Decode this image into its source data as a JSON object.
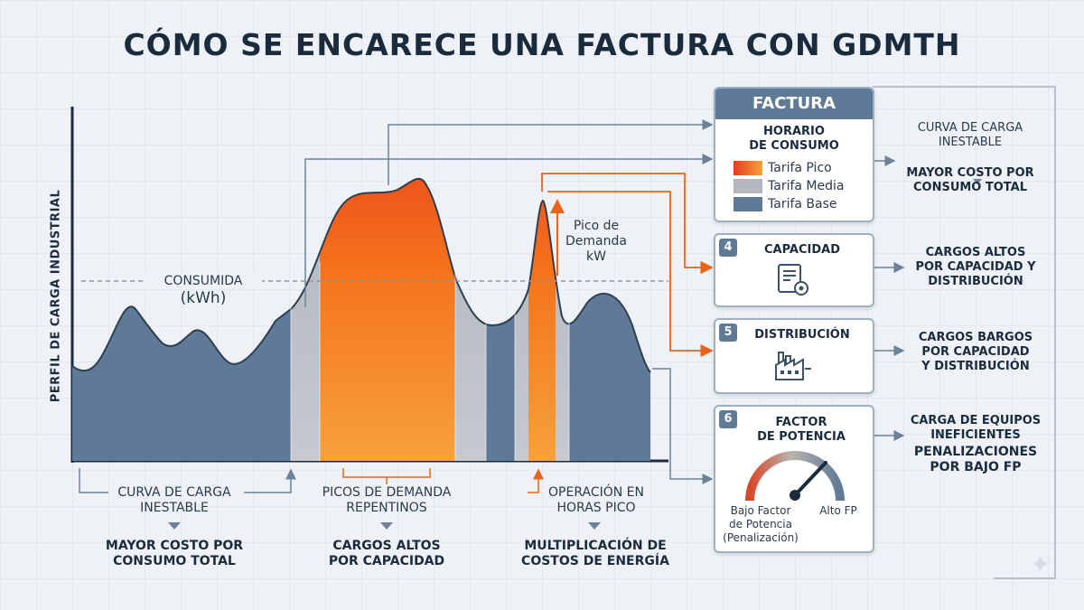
{
  "title": "CÓMO SE ENCARECE UNA FACTURA CON GDMTH",
  "y_axis_label": "PERFIL DE CARGA INDUSTRIAL",
  "chart": {
    "consumed_label_1": "CONSUMIDA",
    "consumed_label_2": "(kWh)",
    "peak_label": [
      "Pico de",
      "Demanda",
      "kW"
    ]
  },
  "bottom": [
    {
      "cause": [
        "CURVA DE CARGA",
        "INESTABLE"
      ],
      "effect": [
        "MAYOR COSTO POR",
        "CONSUMO TOTAL"
      ]
    },
    {
      "cause": [
        "PICOS DE DEMANDA",
        "REPENTINOS"
      ],
      "effect": [
        "CARGOS ALTOS",
        "POR CAPACIDAD"
      ]
    },
    {
      "cause": [
        "OPERACIÓN EN",
        "HORAS PICO"
      ],
      "effect": [
        "MULTIPLICACIÓN DE",
        "COSTOS DE ENERGÍA"
      ]
    }
  ],
  "factura": {
    "header": "FACTURA",
    "subtitle": [
      "HORARIO",
      "DE CONSUMO"
    ],
    "legend": [
      {
        "label": "Tarifa Pico",
        "color": "#f26a1b"
      },
      {
        "label": "Tarifa Media",
        "color": "#b3b8bf"
      },
      {
        "label": "Tarifa Base",
        "color": "#5f7a97"
      }
    ]
  },
  "cards": [
    {
      "num": "4",
      "title": [
        "CAPACIDAD"
      ],
      "icon": "report-gear-icon"
    },
    {
      "num": "5",
      "title": [
        "DISTRIBUCIÓN"
      ],
      "icon": "factory-icon"
    },
    {
      "num": "6",
      "title": [
        "FACTOR",
        "DE POTENCIA"
      ],
      "icon": "gauge-icon",
      "gauge_low": [
        "Bajo Factor",
        "de Potencia",
        "(Penalización)"
      ],
      "gauge_high": "Alto FP"
    }
  ],
  "right_labels": [
    {
      "top": [
        "CURVA DE CARGA",
        "INESTABLE"
      ],
      "bottom": [
        "MAYOR COSTO POR",
        "CONSUMO TOTAL"
      ]
    },
    {
      "top": [
        "CARGOS ALTOS",
        "POR CAPACIDAD Y",
        "DISTRIBUCIÓN"
      ]
    },
    {
      "top": [
        "CARGOS BARGOS",
        "POR CAPACIDAD",
        "Y DISTRIBUCIÓN"
      ]
    },
    {
      "top": [
        "CARGA DE EQUIPOS",
        "INEFICIENTES"
      ],
      "bottom": [
        "PENALIZACIONES",
        "POR BAJO FP"
      ]
    }
  ],
  "colors": {
    "peak": "#f26a1b",
    "mid": "#b3b8bf",
    "base": "#5f7a97",
    "arrow": "#e8641c"
  }
}
